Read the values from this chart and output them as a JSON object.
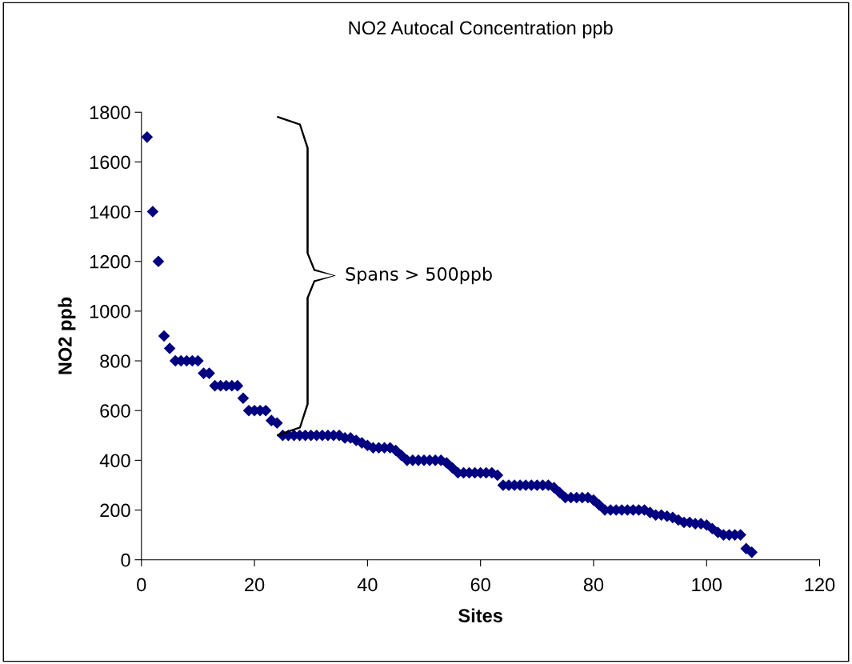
{
  "chart_data": {
    "type": "scatter",
    "title": "NO2 Autocal Concentration ppb",
    "xlabel": "Sites",
    "ylabel": "NO2 ppb",
    "x": [
      1,
      2,
      3,
      4,
      5,
      6,
      7,
      8,
      9,
      10,
      11,
      12,
      13,
      14,
      15,
      16,
      17,
      18,
      19,
      20,
      21,
      22,
      23,
      24,
      25,
      26,
      27,
      28,
      29,
      30,
      31,
      32,
      33,
      34,
      35,
      36,
      37,
      38,
      39,
      40,
      41,
      42,
      43,
      44,
      45,
      46,
      47,
      48,
      49,
      50,
      51,
      52,
      53,
      54,
      55,
      56,
      57,
      58,
      59,
      60,
      61,
      62,
      63,
      64,
      65,
      66,
      67,
      68,
      69,
      70,
      71,
      72,
      73,
      74,
      75,
      76,
      77,
      78,
      79,
      80,
      81,
      82,
      83,
      84,
      85,
      86,
      87,
      88,
      89,
      90,
      91,
      92,
      93,
      94,
      95,
      96,
      97,
      98,
      99,
      100,
      101,
      102,
      103,
      104,
      105,
      106,
      107,
      108
    ],
    "series": [
      {
        "color": "#000080",
        "values": [
          1700,
          1400,
          1200,
          900,
          850,
          800,
          800,
          800,
          800,
          800,
          750,
          750,
          700,
          700,
          700,
          700,
          700,
          650,
          600,
          600,
          600,
          600,
          560,
          550,
          500,
          500,
          500,
          500,
          500,
          500,
          500,
          500,
          500,
          500,
          500,
          490,
          490,
          480,
          470,
          460,
          450,
          450,
          450,
          450,
          440,
          420,
          400,
          400,
          400,
          400,
          400,
          400,
          400,
          390,
          370,
          350,
          350,
          350,
          350,
          350,
          350,
          350,
          340,
          300,
          300,
          300,
          300,
          300,
          300,
          300,
          300,
          300,
          290,
          270,
          250,
          250,
          250,
          250,
          250,
          240,
          220,
          200,
          200,
          200,
          200,
          200,
          200,
          200,
          200,
          190,
          180,
          180,
          175,
          170,
          160,
          150,
          150,
          145,
          145,
          140,
          125,
          110,
          100,
          100,
          100,
          100,
          45,
          30
        ]
      }
    ],
    "xlim": [
      0,
      120
    ],
    "xticks": [
      0,
      20,
      40,
      60,
      80,
      100,
      120
    ],
    "ylim": [
      0,
      1800
    ],
    "yticks": [
      0,
      200,
      400,
      600,
      800,
      1000,
      1200,
      1400,
      1600,
      1800
    ],
    "marker": "diamond",
    "grid": false,
    "legend": false,
    "annotations": [
      "Spans > 500ppb"
    ]
  }
}
